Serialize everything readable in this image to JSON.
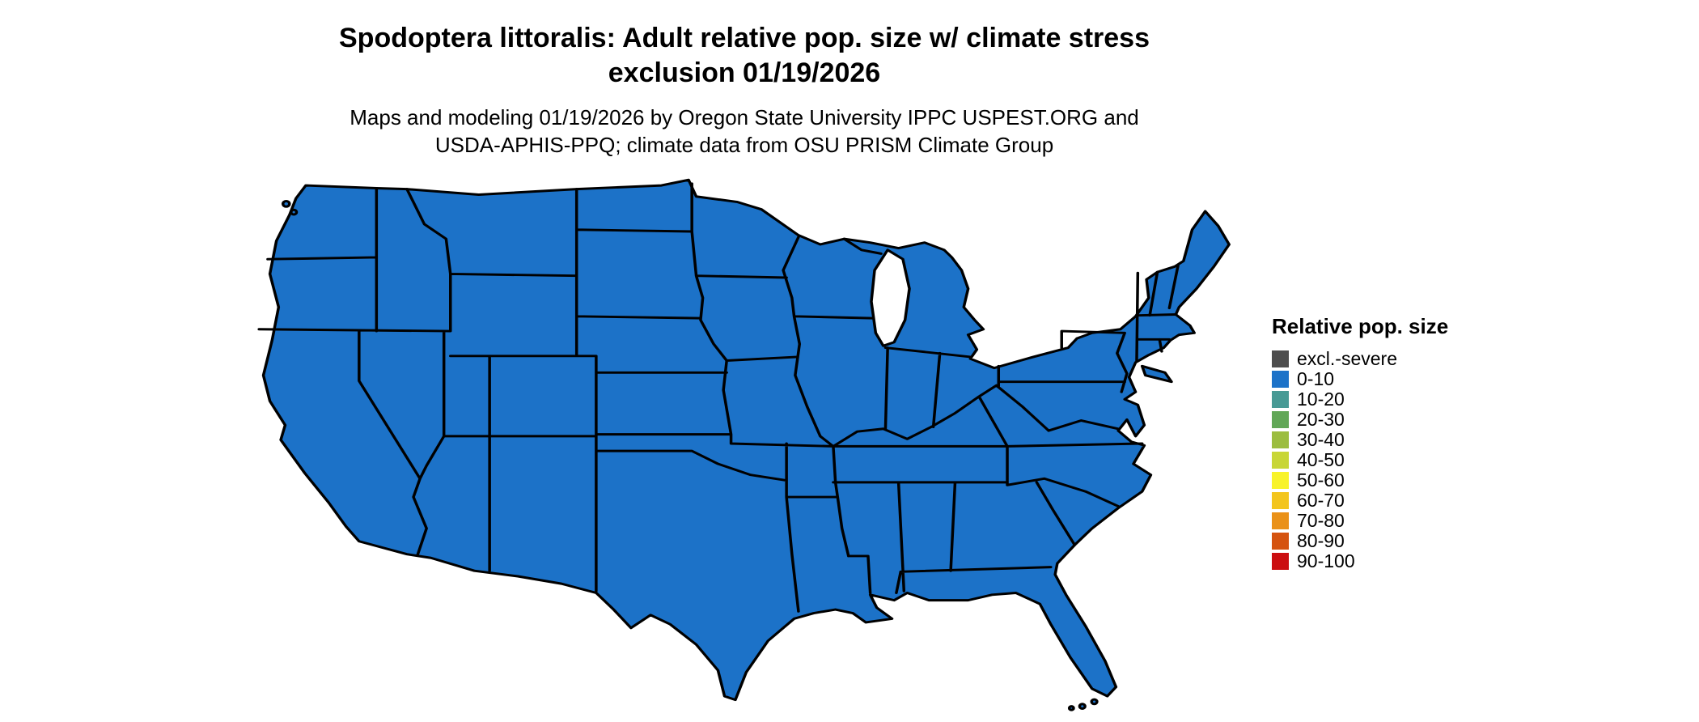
{
  "page": {
    "background": "#ffffff"
  },
  "header": {
    "title_line1": "Spodoptera littoralis: Adult relative pop. size w/ climate stress",
    "title_line2": "exclusion 01/19/2026",
    "subtitle_line1": "Maps and modeling 01/19/2026 by Oregon State University IPPC USPEST.ORG and",
    "subtitle_line2": "USDA-APHIS-PPQ; climate data from OSU PRISM Climate Group"
  },
  "map": {
    "region": "Continental United States",
    "fill": "#1c72c8",
    "border_color": "#000000",
    "uniform_value_category": "0-10"
  },
  "legend": {
    "title": "Relative pop. size",
    "items": [
      {
        "label": "excl.-severe",
        "color": "#4d4d4d"
      },
      {
        "label": "0-10",
        "color": "#1c72c8"
      },
      {
        "label": "10-20",
        "color": "#489a95"
      },
      {
        "label": "20-30",
        "color": "#61a757"
      },
      {
        "label": "30-40",
        "color": "#9cbd3f"
      },
      {
        "label": "40-50",
        "color": "#c8d636"
      },
      {
        "label": "50-60",
        "color": "#f8f32b"
      },
      {
        "label": "60-70",
        "color": "#f3c51d"
      },
      {
        "label": "70-80",
        "color": "#ea9118"
      },
      {
        "label": "80-90",
        "color": "#d5530f"
      },
      {
        "label": "90-100",
        "color": "#cb0e10"
      }
    ]
  },
  "chart_data": {
    "type": "choropleth_map",
    "title": "Spodoptera littoralis: Adult relative pop. size w/ climate stress exclusion 01/19/2026",
    "legend_title": "Relative pop. size",
    "categories": [
      "excl.-severe",
      "0-10",
      "10-20",
      "20-30",
      "30-40",
      "40-50",
      "50-60",
      "60-70",
      "70-80",
      "80-90",
      "90-100"
    ],
    "observation": "All visible continental US states are shaded in the 0-10 category"
  }
}
